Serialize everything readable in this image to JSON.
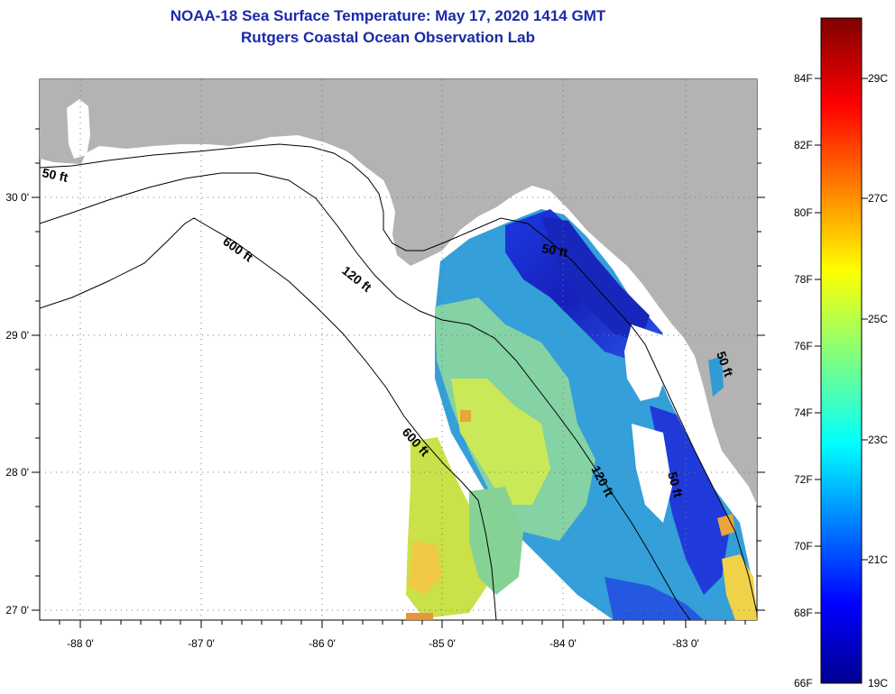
{
  "title": {
    "line1": "NOAA-18 Sea Surface Temperature:  May 17, 2020 1414 GMT",
    "line2": "Rutgers Coastal Ocean Observation Lab"
  },
  "axes": {
    "lon_labels": [
      "-88 0'",
      "-87 0'",
      "-86 0'",
      "-85 0'",
      "-84 0'",
      "-83 0'"
    ],
    "lat_labels": [
      "30 0'",
      "29 0'",
      "28 0'",
      "27 0'"
    ]
  },
  "contours": {
    "labels": [
      "50 ft",
      "600 ft",
      "120 ft",
      "50 ft",
      "600 ft",
      "120 ft",
      "50 ft",
      "50 ft"
    ]
  },
  "colorbar": {
    "f_labels": [
      "84F",
      "82F",
      "80F",
      "78F",
      "76F",
      "74F",
      "72F",
      "70F",
      "68F",
      "66F"
    ],
    "c_labels": [
      "29C",
      "27C",
      "25C",
      "23C",
      "21C",
      "19C"
    ]
  },
  "colors": {
    "title": "#1a2aa8",
    "land": "#b3b3b3",
    "water": "#ffffff"
  }
}
